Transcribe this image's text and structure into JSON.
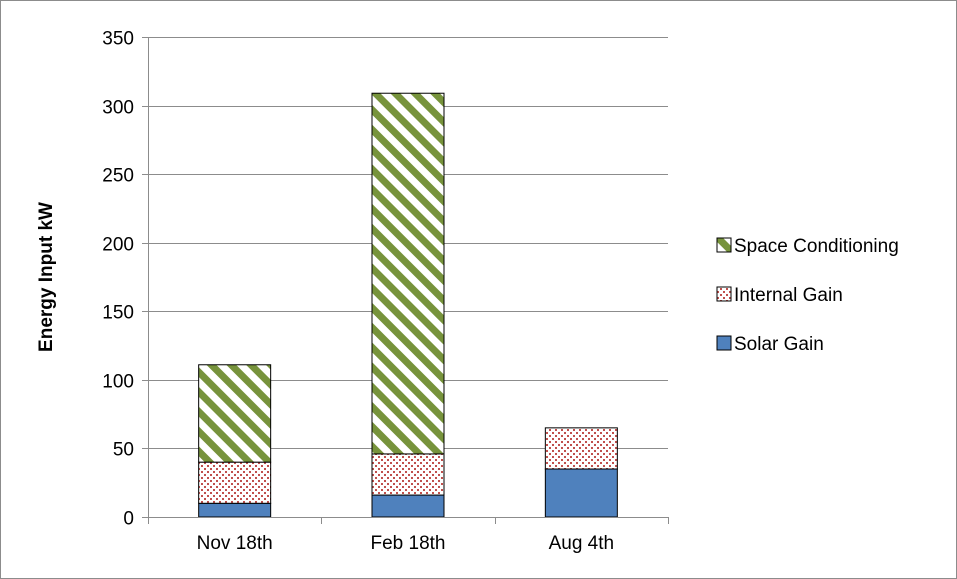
{
  "chart_data": {
    "type": "bar",
    "stacked": true,
    "title": "",
    "xlabel": "",
    "ylabel": "Energy Input kW",
    "ylim": [
      0,
      350
    ],
    "ytick_step": 50,
    "yticks": [
      "0",
      "50",
      "100",
      "150",
      "200",
      "250",
      "300",
      "350"
    ],
    "grid": true,
    "legend_position": "right",
    "categories": [
      "Nov 18th",
      "Feb 18th",
      "Aug 4th"
    ],
    "series": [
      {
        "name": "Solar Gain",
        "values": [
          10,
          16,
          35
        ],
        "color": "#4f81bd",
        "pattern": "solid"
      },
      {
        "name": "Internal Gain",
        "values": [
          30,
          30,
          30
        ],
        "color": "#c0504d",
        "pattern": "dots"
      },
      {
        "name": "Space Conditioning",
        "values": [
          71,
          263,
          0
        ],
        "color": "#77933c",
        "pattern": "diagonal-stripes"
      }
    ],
    "legend_order": [
      "Space Conditioning",
      "Internal Gain",
      "Solar Gain"
    ]
  }
}
